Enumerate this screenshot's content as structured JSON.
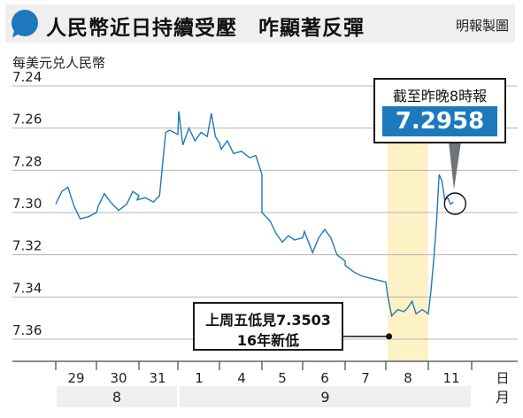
{
  "header": {
    "title": "人民幣近日持續受壓　咋顯著反彈",
    "credit": "明報製圖"
  },
  "chart_data": {
    "type": "line",
    "ylabel": "每美元兑人民幣",
    "y_inverted": true,
    "ylim": [
      7.24,
      7.37
    ],
    "yticks": [
      "7.24",
      "7.26",
      "7.28",
      "7.30",
      "7.32",
      "7.34",
      "7.36"
    ],
    "grid": "horizontal",
    "x_axis_unit_day": "日",
    "x_axis_unit_month": "月",
    "days": [
      "29",
      "30",
      "31",
      "1",
      "4",
      "5",
      "6",
      "7",
      "8",
      "11"
    ],
    "months": [
      {
        "label": "8",
        "from_day": "29",
        "to_day": "31"
      },
      {
        "label": "9",
        "from_day": "1",
        "to_day": "11"
      }
    ],
    "highlight_day": "8",
    "line_color": "#1d79bb",
    "highlight_color": "#fdf1c6",
    "series": [
      {
        "values": [
          {
            "day": "29",
            "t": 0.0,
            "v": 7.296
          },
          {
            "day": "29",
            "t": 0.15,
            "v": 7.29
          },
          {
            "day": "29",
            "t": 0.3,
            "v": 7.288
          },
          {
            "day": "29",
            "t": 0.45,
            "v": 7.297
          },
          {
            "day": "29",
            "t": 0.6,
            "v": 7.303
          },
          {
            "day": "29",
            "t": 0.8,
            "v": 7.302
          },
          {
            "day": "29",
            "t": 1.0,
            "v": 7.3
          },
          {
            "day": "30",
            "t": 0.0,
            "v": 7.297
          },
          {
            "day": "30",
            "t": 0.15,
            "v": 7.291
          },
          {
            "day": "30",
            "t": 0.3,
            "v": 7.295
          },
          {
            "day": "30",
            "t": 0.5,
            "v": 7.299
          },
          {
            "day": "30",
            "t": 0.7,
            "v": 7.296
          },
          {
            "day": "30",
            "t": 0.85,
            "v": 7.29
          },
          {
            "day": "30",
            "t": 1.0,
            "v": 7.292
          },
          {
            "day": "31",
            "t": 0.0,
            "v": 7.294
          },
          {
            "day": "31",
            "t": 0.2,
            "v": 7.293
          },
          {
            "day": "31",
            "t": 0.4,
            "v": 7.295
          },
          {
            "day": "31",
            "t": 0.55,
            "v": 7.292
          },
          {
            "day": "31",
            "t": 0.7,
            "v": 7.262
          },
          {
            "day": "31",
            "t": 0.8,
            "v": 7.261
          },
          {
            "day": "31",
            "t": 1.0,
            "v": 7.263
          },
          {
            "day": "1",
            "t": 0.0,
            "v": 7.252
          },
          {
            "day": "1",
            "t": 0.1,
            "v": 7.268
          },
          {
            "day": "1",
            "t": 0.25,
            "v": 7.26
          },
          {
            "day": "1",
            "t": 0.4,
            "v": 7.266
          },
          {
            "day": "1",
            "t": 0.55,
            "v": 7.262
          },
          {
            "day": "1",
            "t": 0.7,
            "v": 7.264
          },
          {
            "day": "1",
            "t": 0.8,
            "v": 7.253
          },
          {
            "day": "1",
            "t": 0.9,
            "v": 7.264
          },
          {
            "day": "1",
            "t": 1.0,
            "v": 7.267
          },
          {
            "day": "4",
            "t": 0.0,
            "v": 7.27
          },
          {
            "day": "4",
            "t": 0.15,
            "v": 7.266
          },
          {
            "day": "4",
            "t": 0.3,
            "v": 7.272
          },
          {
            "day": "4",
            "t": 0.5,
            "v": 7.271
          },
          {
            "day": "4",
            "t": 0.7,
            "v": 7.274
          },
          {
            "day": "4",
            "t": 0.85,
            "v": 7.273
          },
          {
            "day": "4",
            "t": 1.0,
            "v": 7.282
          },
          {
            "day": "5",
            "t": 0.0,
            "v": 7.3
          },
          {
            "day": "5",
            "t": 0.2,
            "v": 7.304
          },
          {
            "day": "5",
            "t": 0.35,
            "v": 7.31
          },
          {
            "day": "5",
            "t": 0.5,
            "v": 7.314
          },
          {
            "day": "5",
            "t": 0.65,
            "v": 7.311
          },
          {
            "day": "5",
            "t": 0.8,
            "v": 7.313
          },
          {
            "day": "5",
            "t": 1.0,
            "v": 7.312
          },
          {
            "day": "6",
            "t": 0.0,
            "v": 7.309
          },
          {
            "day": "6",
            "t": 0.2,
            "v": 7.319
          },
          {
            "day": "6",
            "t": 0.35,
            "v": 7.312
          },
          {
            "day": "6",
            "t": 0.5,
            "v": 7.308
          },
          {
            "day": "6",
            "t": 0.65,
            "v": 7.312
          },
          {
            "day": "6",
            "t": 0.8,
            "v": 7.32
          },
          {
            "day": "6",
            "t": 1.0,
            "v": 7.323
          },
          {
            "day": "7",
            "t": 0.0,
            "v": 7.325
          },
          {
            "day": "7",
            "t": 0.2,
            "v": 7.328
          },
          {
            "day": "7",
            "t": 0.4,
            "v": 7.33
          },
          {
            "day": "7",
            "t": 0.6,
            "v": 7.331
          },
          {
            "day": "7",
            "t": 0.8,
            "v": 7.332
          },
          {
            "day": "7",
            "t": 1.0,
            "v": 7.333
          },
          {
            "day": "8",
            "t": 0.0,
            "v": 7.339
          },
          {
            "day": "8",
            "t": 0.1,
            "v": 7.349
          },
          {
            "day": "8",
            "t": 0.25,
            "v": 7.346
          },
          {
            "day": "8",
            "t": 0.4,
            "v": 7.347
          },
          {
            "day": "8",
            "t": 0.5,
            "v": 7.345
          },
          {
            "day": "8",
            "t": 0.6,
            "v": 7.342
          },
          {
            "day": "8",
            "t": 0.7,
            "v": 7.348
          },
          {
            "day": "8",
            "t": 0.85,
            "v": 7.346
          },
          {
            "day": "8",
            "t": 1.0,
            "v": 7.348
          },
          {
            "day": "11",
            "t": 0.0,
            "v": 7.337
          },
          {
            "day": "11",
            "t": 0.07,
            "v": 7.322
          },
          {
            "day": "11",
            "t": 0.14,
            "v": 7.304
          },
          {
            "day": "11",
            "t": 0.2,
            "v": 7.282
          },
          {
            "day": "11",
            "t": 0.27,
            "v": 7.285
          },
          {
            "day": "11",
            "t": 0.34,
            "v": 7.294
          },
          {
            "day": "11",
            "t": 0.41,
            "v": 7.293
          },
          {
            "day": "11",
            "t": 0.48,
            "v": 7.296
          },
          {
            "day": "11",
            "t": 0.55,
            "v": 7.295
          }
        ]
      }
    ],
    "annotations": [
      {
        "label": "截至昨晚8時報",
        "value": "7.2958",
        "day": "11",
        "ref_value": 7.2958
      },
      {
        "line1_prefix": "上周五低見",
        "line1_value": "7.3503",
        "line2": "16年新低",
        "day": "8",
        "ref_value": 7.3503
      }
    ]
  }
}
